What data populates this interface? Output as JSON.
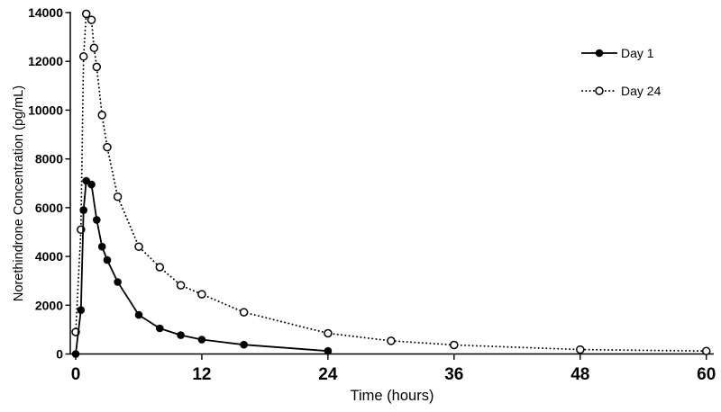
{
  "chart_data": {
    "type": "line",
    "title": "",
    "xlabel": "Time (hours)",
    "ylabel": "Norethindrone Concentration (pg/mL)",
    "xlim": [
      0,
      60
    ],
    "ylim": [
      0,
      14000
    ],
    "x_ticks": [
      0,
      12,
      24,
      36,
      48,
      60
    ],
    "y_ticks": [
      0,
      2000,
      4000,
      6000,
      8000,
      10000,
      12000,
      14000
    ],
    "grid": false,
    "legend_position": "upper-right",
    "colors": {
      "foreground": "#000000",
      "background": "#ffffff"
    },
    "series": [
      {
        "name": "Day 1",
        "line": "solid",
        "marker": "filled-circle",
        "x": [
          0,
          0.5,
          0.75,
          1,
          1.5,
          2,
          2.5,
          3,
          4,
          6,
          8,
          10,
          12,
          16,
          24
        ],
        "y": [
          0,
          1800,
          5900,
          7100,
          6950,
          5500,
          4400,
          3850,
          2950,
          1600,
          1050,
          770,
          590,
          380,
          120
        ]
      },
      {
        "name": "Day 24",
        "line": "dotted",
        "marker": "open-circle",
        "x": [
          0,
          0.5,
          0.75,
          1,
          1.5,
          1.75,
          2,
          2.5,
          3,
          4,
          6,
          8,
          10,
          12,
          16,
          24,
          30,
          36,
          48,
          60
        ],
        "y": [
          900,
          5100,
          12200,
          13950,
          13700,
          12550,
          11770,
          9800,
          8480,
          6450,
          4400,
          3560,
          2820,
          2450,
          1710,
          850,
          540,
          370,
          180,
          120
        ]
      }
    ]
  }
}
